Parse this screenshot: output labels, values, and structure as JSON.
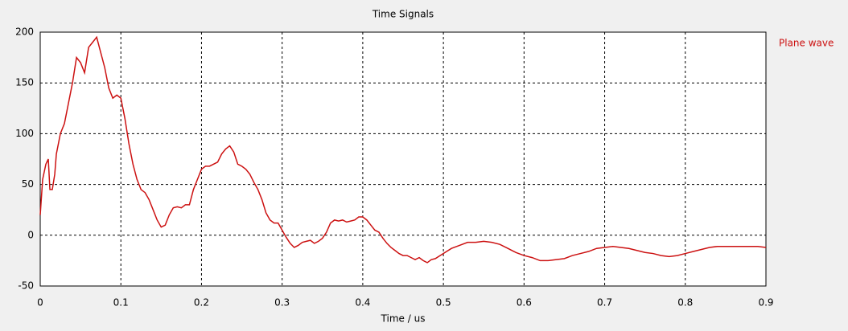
{
  "chart_data": {
    "type": "line",
    "title": "Time Signals",
    "x_label": "Time / us",
    "x": [
      0,
      0.003,
      0.007,
      0.01,
      0.012,
      0.015,
      0.018,
      0.02,
      0.025,
      0.03,
      0.035,
      0.04,
      0.045,
      0.05,
      0.055,
      0.06,
      0.065,
      0.07,
      0.075,
      0.08,
      0.085,
      0.09,
      0.095,
      0.1,
      0.105,
      0.11,
      0.115,
      0.12,
      0.125,
      0.13,
      0.135,
      0.14,
      0.145,
      0.15,
      0.155,
      0.16,
      0.165,
      0.17,
      0.175,
      0.18,
      0.185,
      0.19,
      0.195,
      0.2,
      0.205,
      0.21,
      0.215,
      0.22,
      0.225,
      0.23,
      0.235,
      0.24,
      0.245,
      0.25,
      0.255,
      0.26,
      0.265,
      0.27,
      0.275,
      0.28,
      0.285,
      0.29,
      0.295,
      0.3,
      0.305,
      0.31,
      0.315,
      0.32,
      0.325,
      0.33,
      0.335,
      0.34,
      0.345,
      0.35,
      0.355,
      0.36,
      0.365,
      0.37,
      0.375,
      0.38,
      0.385,
      0.39,
      0.395,
      0.4,
      0.405,
      0.41,
      0.415,
      0.42,
      0.425,
      0.43,
      0.435,
      0.44,
      0.445,
      0.45,
      0.455,
      0.46,
      0.465,
      0.47,
      0.475,
      0.48,
      0.485,
      0.49,
      0.5,
      0.51,
      0.52,
      0.53,
      0.54,
      0.55,
      0.56,
      0.57,
      0.58,
      0.59,
      0.6,
      0.61,
      0.62,
      0.63,
      0.64,
      0.65,
      0.66,
      0.67,
      0.68,
      0.69,
      0.7,
      0.71,
      0.72,
      0.73,
      0.74,
      0.75,
      0.76,
      0.77,
      0.78,
      0.79,
      0.8,
      0.81,
      0.82,
      0.83,
      0.84,
      0.85,
      0.86,
      0.87,
      0.88,
      0.89,
      0.9
    ],
    "series": [
      {
        "name": "Plane wave",
        "color": "#cc1111",
        "values": [
          20,
          55,
          70,
          75,
          45,
          45,
          60,
          80,
          100,
          110,
          130,
          150,
          175,
          170,
          160,
          185,
          190,
          195,
          180,
          165,
          145,
          135,
          138,
          135,
          115,
          90,
          70,
          55,
          45,
          42,
          35,
          25,
          15,
          8,
          10,
          20,
          27,
          28,
          27,
          30,
          30,
          45,
          55,
          65,
          68,
          68,
          70,
          72,
          80,
          85,
          88,
          82,
          70,
          68,
          65,
          60,
          52,
          45,
          35,
          22,
          15,
          12,
          12,
          5,
          -2,
          -8,
          -12,
          -10,
          -7,
          -6,
          -5,
          -8,
          -6,
          -3,
          3,
          12,
          15,
          14,
          15,
          13,
          14,
          15,
          18,
          18,
          15,
          10,
          5,
          3,
          -3,
          -8,
          -12,
          -15,
          -18,
          -20,
          -20,
          -22,
          -24,
          -22,
          -25,
          -27,
          -24,
          -23,
          -18,
          -13,
          -10,
          -7,
          -7,
          -6,
          -7,
          -9,
          -13,
          -17,
          -20,
          -22,
          -25,
          -25,
          -24,
          -23,
          -20,
          -18,
          -16,
          -13,
          -12,
          -11,
          -12,
          -13,
          -15,
          -17,
          -18,
          -20,
          -21,
          -20,
          -18,
          -16,
          -14,
          -12,
          -11,
          -11,
          -11,
          -11,
          -11,
          -11,
          -12
        ]
      }
    ],
    "xlim": [
      0,
      0.9
    ],
    "xticks": [
      0,
      0.1,
      0.2,
      0.3,
      0.4,
      0.5,
      0.6,
      0.7,
      0.8,
      0.9
    ],
    "ylim": [
      -50,
      200
    ],
    "yticks": [
      -50,
      0,
      50,
      100,
      150,
      200
    ],
    "grid": true,
    "legend": "right"
  }
}
